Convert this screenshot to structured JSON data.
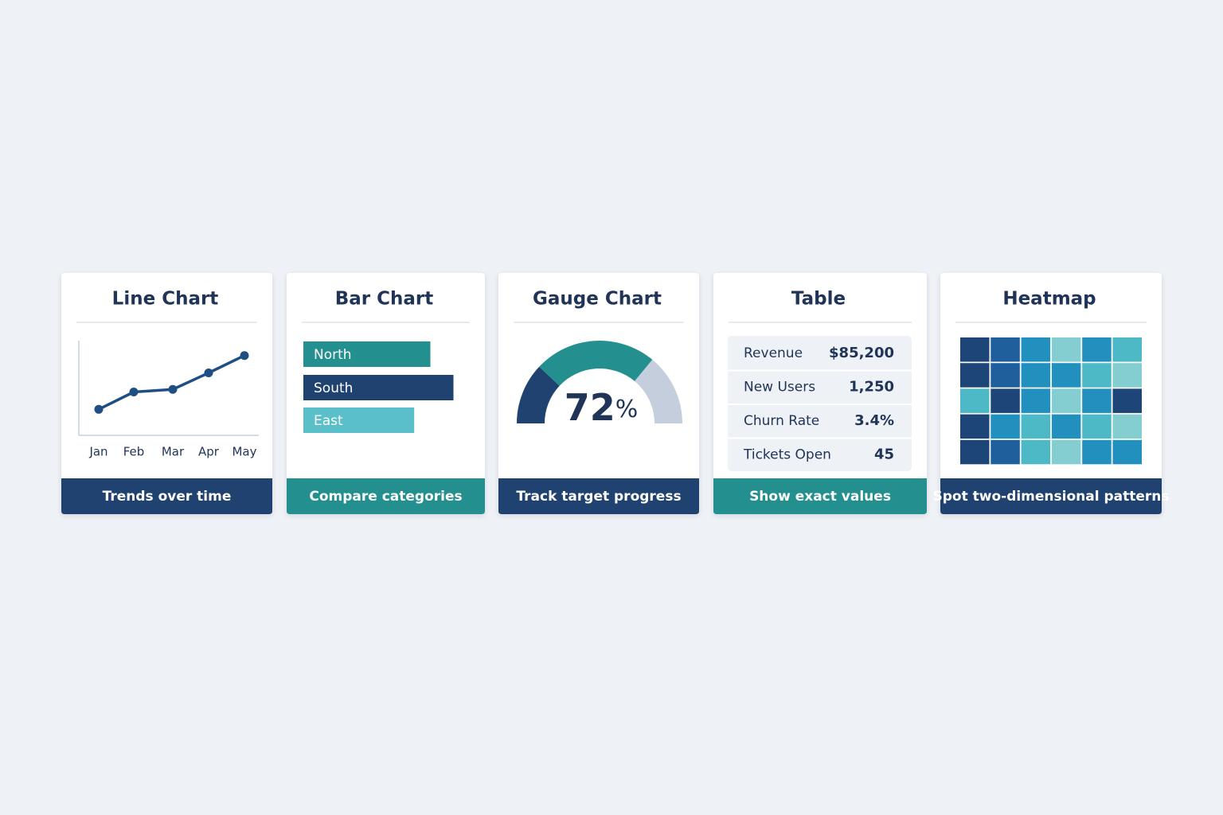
{
  "chart_data": [
    {
      "type": "line",
      "title": "Line Chart",
      "categories": [
        "Jan",
        "Feb",
        "Mar",
        "Apr",
        "May"
      ],
      "values": [
        30,
        50,
        53,
        72,
        92
      ],
      "ylim": [
        0,
        100
      ],
      "color": "#1f4e82",
      "caption": "Trends over time",
      "caption_color": "#1f4270"
    },
    {
      "type": "bar",
      "orientation": "horizontal",
      "title": "Bar Chart",
      "categories": [
        "North",
        "South",
        "East"
      ],
      "values": [
        55,
        65,
        48
      ],
      "xlim": [
        0,
        100
      ],
      "colors": [
        "#23908f",
        "#1f4270",
        "#5bbfca"
      ],
      "caption": "Compare categories",
      "caption_color": "#23908f"
    },
    {
      "type": "gauge",
      "title": "Gauge Chart",
      "values": [
        72
      ],
      "value_labels": [
        "72%"
      ],
      "ylim": [
        0,
        100
      ],
      "colors": [
        "#1f4270",
        "#23908f"
      ],
      "track_color": "#c5cedd",
      "caption": "Track target progress",
      "caption_color": "#1f4270"
    },
    {
      "type": "table",
      "title": "Table",
      "rows": [
        [
          "Revenue",
          "$85,200"
        ],
        [
          "New Users",
          "1,250"
        ],
        [
          "Churn Rate",
          "3.4%"
        ],
        [
          "Tickets Open",
          "45"
        ]
      ],
      "caption": "Show exact values",
      "caption_color": "#23908f"
    },
    {
      "type": "heatmap",
      "title": "Heatmap",
      "values": [
        [
          5,
          4,
          3,
          1,
          3,
          2
        ],
        [
          5,
          4,
          3,
          3,
          2,
          1
        ],
        [
          2,
          5,
          3,
          1,
          3,
          5
        ],
        [
          5,
          3,
          2,
          3,
          2,
          1
        ],
        [
          5,
          4,
          2,
          1,
          3,
          3
        ]
      ],
      "zlim": [
        1,
        5
      ],
      "colorscale": [
        "#84cdd0",
        "#4db8c6",
        "#2190bf",
        "#1e5f9c",
        "#1d4578"
      ],
      "caption": "Spot two-dimensional patterns",
      "caption_color": "#1f4270"
    }
  ]
}
